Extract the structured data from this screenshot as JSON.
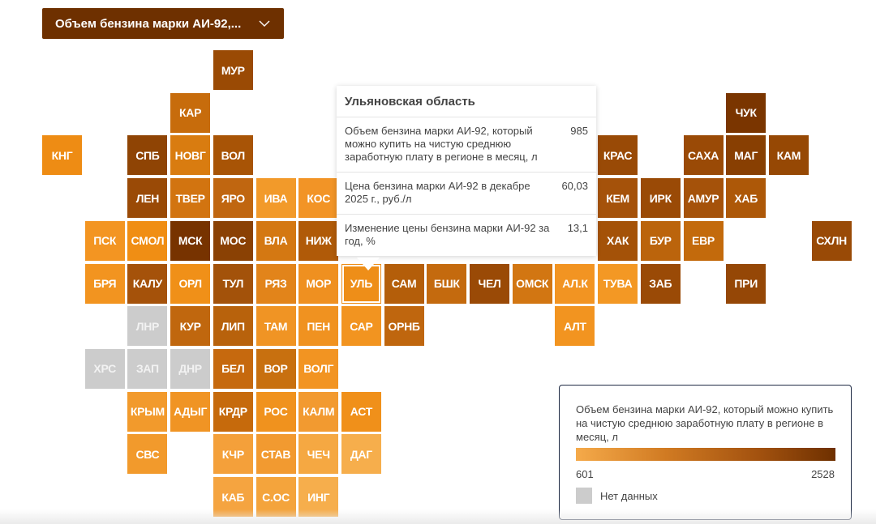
{
  "dropdown": {
    "label": "Объем бензина марки АИ-92,...",
    "icon": "chevron-down-icon"
  },
  "regions": [
    {
      "label": "МУР",
      "color": "#9a4a04"
    },
    {
      "label": "КАР",
      "color": "#c76c0c"
    },
    {
      "label": "ЧУК",
      "color": "#7a3500"
    },
    {
      "label": "КНГ",
      "color": "#ee8c14"
    },
    {
      "label": "СПБ",
      "color": "#8f4404"
    },
    {
      "label": "НОВГ",
      "color": "#d97c10"
    },
    {
      "label": "ВОЛ",
      "color": "#a85406"
    },
    {
      "label": "КРАС",
      "color": "#994a06"
    },
    {
      "label": "САХА",
      "color": "#9a4a06"
    },
    {
      "label": "МАГ",
      "color": "#883f02"
    },
    {
      "label": "КАМ",
      "color": "#964804"
    },
    {
      "label": "ЛЕН",
      "color": "#9a4a06"
    },
    {
      "label": "ТВЕР",
      "color": "#d27410"
    },
    {
      "label": "ЯРО",
      "color": "#c06610"
    },
    {
      "label": "ИВА",
      "color": "#f29a2a"
    },
    {
      "label": "КОС",
      "color": "#f29426"
    },
    {
      "label": "КЕМ",
      "color": "#a5520a"
    },
    {
      "label": "ИРК",
      "color": "#9a4a06"
    },
    {
      "label": "АМУР",
      "color": "#a5520a"
    },
    {
      "label": "ХАБ",
      "color": "#ad5808"
    },
    {
      "label": "ПСК",
      "color": "#f39522"
    },
    {
      "label": "СМОЛ",
      "color": "#f08e14"
    },
    {
      "label": "МСК",
      "color": "#773300"
    },
    {
      "label": "МОС",
      "color": "#8a4104"
    },
    {
      "label": "ВЛА",
      "color": "#d47812"
    },
    {
      "label": "НИЖ",
      "color": "#b05a08"
    },
    {
      "label": "ХАК",
      "color": "#a45208"
    },
    {
      "label": "БУР",
      "color": "#bb640c"
    },
    {
      "label": "ЕВР",
      "color": "#c36a0c"
    },
    {
      "label": "СХЛН",
      "color": "#994a06"
    },
    {
      "label": "БРЯ",
      "color": "#f29420"
    },
    {
      "label": "КАЛУ",
      "color": "#a5520a"
    },
    {
      "label": "ОРЛ",
      "color": "#f09018"
    },
    {
      "label": "ТУЛ",
      "color": "#a3520a"
    },
    {
      "label": "РЯЗ",
      "color": "#e2841a"
    },
    {
      "label": "МОР",
      "color": "#ef9020"
    },
    {
      "label": "УЛЬ",
      "color": "#ee8e18"
    },
    {
      "label": "САМ",
      "color": "#b45e0a"
    },
    {
      "label": "БШК",
      "color": "#c46a0e"
    },
    {
      "label": "ЧЕЛ",
      "color": "#9a4a06"
    },
    {
      "label": "ОМСК",
      "color": "#d27612"
    },
    {
      "label": "АЛ.К",
      "color": "#f29422"
    },
    {
      "label": "ТУВА",
      "color": "#f39824"
    },
    {
      "label": "ЗАБ",
      "color": "#9a4a06"
    },
    {
      "label": "ПРИ",
      "color": "#954706"
    },
    {
      "label": "ЛНР",
      "color": "#cccccc",
      "no_data": true
    },
    {
      "label": "КУР",
      "color": "#c0670e"
    },
    {
      "label": "ЛИП",
      "color": "#b8620c"
    },
    {
      "label": "ТАМ",
      "color": "#f09424"
    },
    {
      "label": "ПЕН",
      "color": "#f09220"
    },
    {
      "label": "САР",
      "color": "#f29420"
    },
    {
      "label": "ОРНБ",
      "color": "#bf660e"
    },
    {
      "label": "АЛТ",
      "color": "#f29420"
    },
    {
      "label": "ХРС",
      "color": "#cccccc",
      "no_data": true
    },
    {
      "label": "ЗАП",
      "color": "#cccccc",
      "no_data": true
    },
    {
      "label": "ДНР",
      "color": "#cccccc",
      "no_data": true
    },
    {
      "label": "БЕЛ",
      "color": "#c6690e"
    },
    {
      "label": "ВОР",
      "color": "#c8700f"
    },
    {
      "label": "ВОЛГ",
      "color": "#f29422"
    },
    {
      "label": "КРЫМ",
      "color": "#f29a2c"
    },
    {
      "label": "АДЫГ",
      "color": "#f09424"
    },
    {
      "label": "КРДР",
      "color": "#c66a0c"
    },
    {
      "label": "РОС",
      "color": "#f0921e"
    },
    {
      "label": "КАЛМ",
      "color": "#f29a30"
    },
    {
      "label": "АСТ",
      "color": "#f0901a"
    },
    {
      "label": "СВС",
      "color": "#f29a2c"
    },
    {
      "label": "КЧР",
      "color": "#f4a03a"
    },
    {
      "label": "СТАВ",
      "color": "#f29a30"
    },
    {
      "label": "ЧЕЧ",
      "color": "#f5a842"
    },
    {
      "label": "ДАГ",
      "color": "#f6ae4c"
    },
    {
      "label": "КАБ",
      "color": "#f5a440"
    },
    {
      "label": "С.ОС",
      "color": "#f4a43c"
    },
    {
      "label": "ИНГ",
      "color": "#f6ae4c"
    }
  ],
  "selected_region": "УЛЬ",
  "tooltip": {
    "title": "Ульяновская область",
    "rows": [
      {
        "label": "Объем бензина марки АИ-92, который можно купить на чистую среднюю заработную плату в регионе в месяц, л",
        "value": "985"
      },
      {
        "label": "Цена бензина марки АИ-92 в декабре 2025 г., руб./л",
        "value": "60,03"
      },
      {
        "label": "Изменение цены бензина марки АИ-92 за год, %",
        "value": "13,1"
      }
    ]
  },
  "legend": {
    "title": "Объем бензина марки АИ-92, который можно купить на чистую среднюю заработную плату в регионе в месяц, л",
    "min": "601",
    "max": "2528",
    "gradient": [
      "#f5aa4a",
      "#6e3000"
    ],
    "no_data_label": "Нет данных",
    "no_data_color": "#cccccc"
  }
}
